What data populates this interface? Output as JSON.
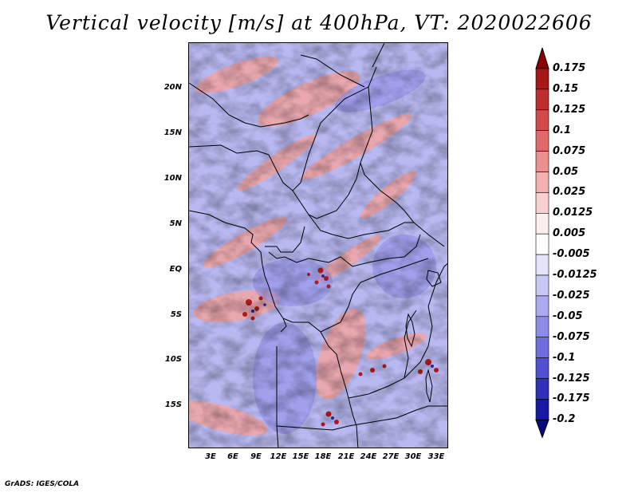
{
  "title": "Vertical velocity [m/s] at 400hPa, VT: 2020022606",
  "lat_labels": [
    "20N",
    "15N",
    "10N",
    "5N",
    "EQ",
    "5S",
    "10S",
    "15S"
  ],
  "lon_labels": [
    "3E",
    "6E",
    "9E",
    "12E",
    "15E",
    "18E",
    "21E",
    "24E",
    "27E",
    "30E",
    "33E"
  ],
  "colorbar": {
    "levels": [
      "0.175",
      "0.15",
      "0.125",
      "0.1",
      "0.075",
      "0.05",
      "0.025",
      "0.0125",
      "0.005",
      "-0.005",
      "-0.0125",
      "-0.025",
      "-0.05",
      "-0.075",
      "-0.1",
      "-0.125",
      "-0.175",
      "-0.2"
    ],
    "colors": [
      "#8b0000",
      "#a51818",
      "#bf2e2e",
      "#d44a4a",
      "#e06a6a",
      "#ea8e8e",
      "#f2b0b0",
      "#f8d0d0",
      "#fdeeee",
      "#ffffff",
      "#e4e4fb",
      "#c8c8f6",
      "#aaaaf0",
      "#8c8ce8",
      "#6e6ede",
      "#5050d0",
      "#3030b8",
      "#1818a0",
      "#0a0a80"
    ]
  },
  "footer": "GrADS: IGES/COLA"
}
